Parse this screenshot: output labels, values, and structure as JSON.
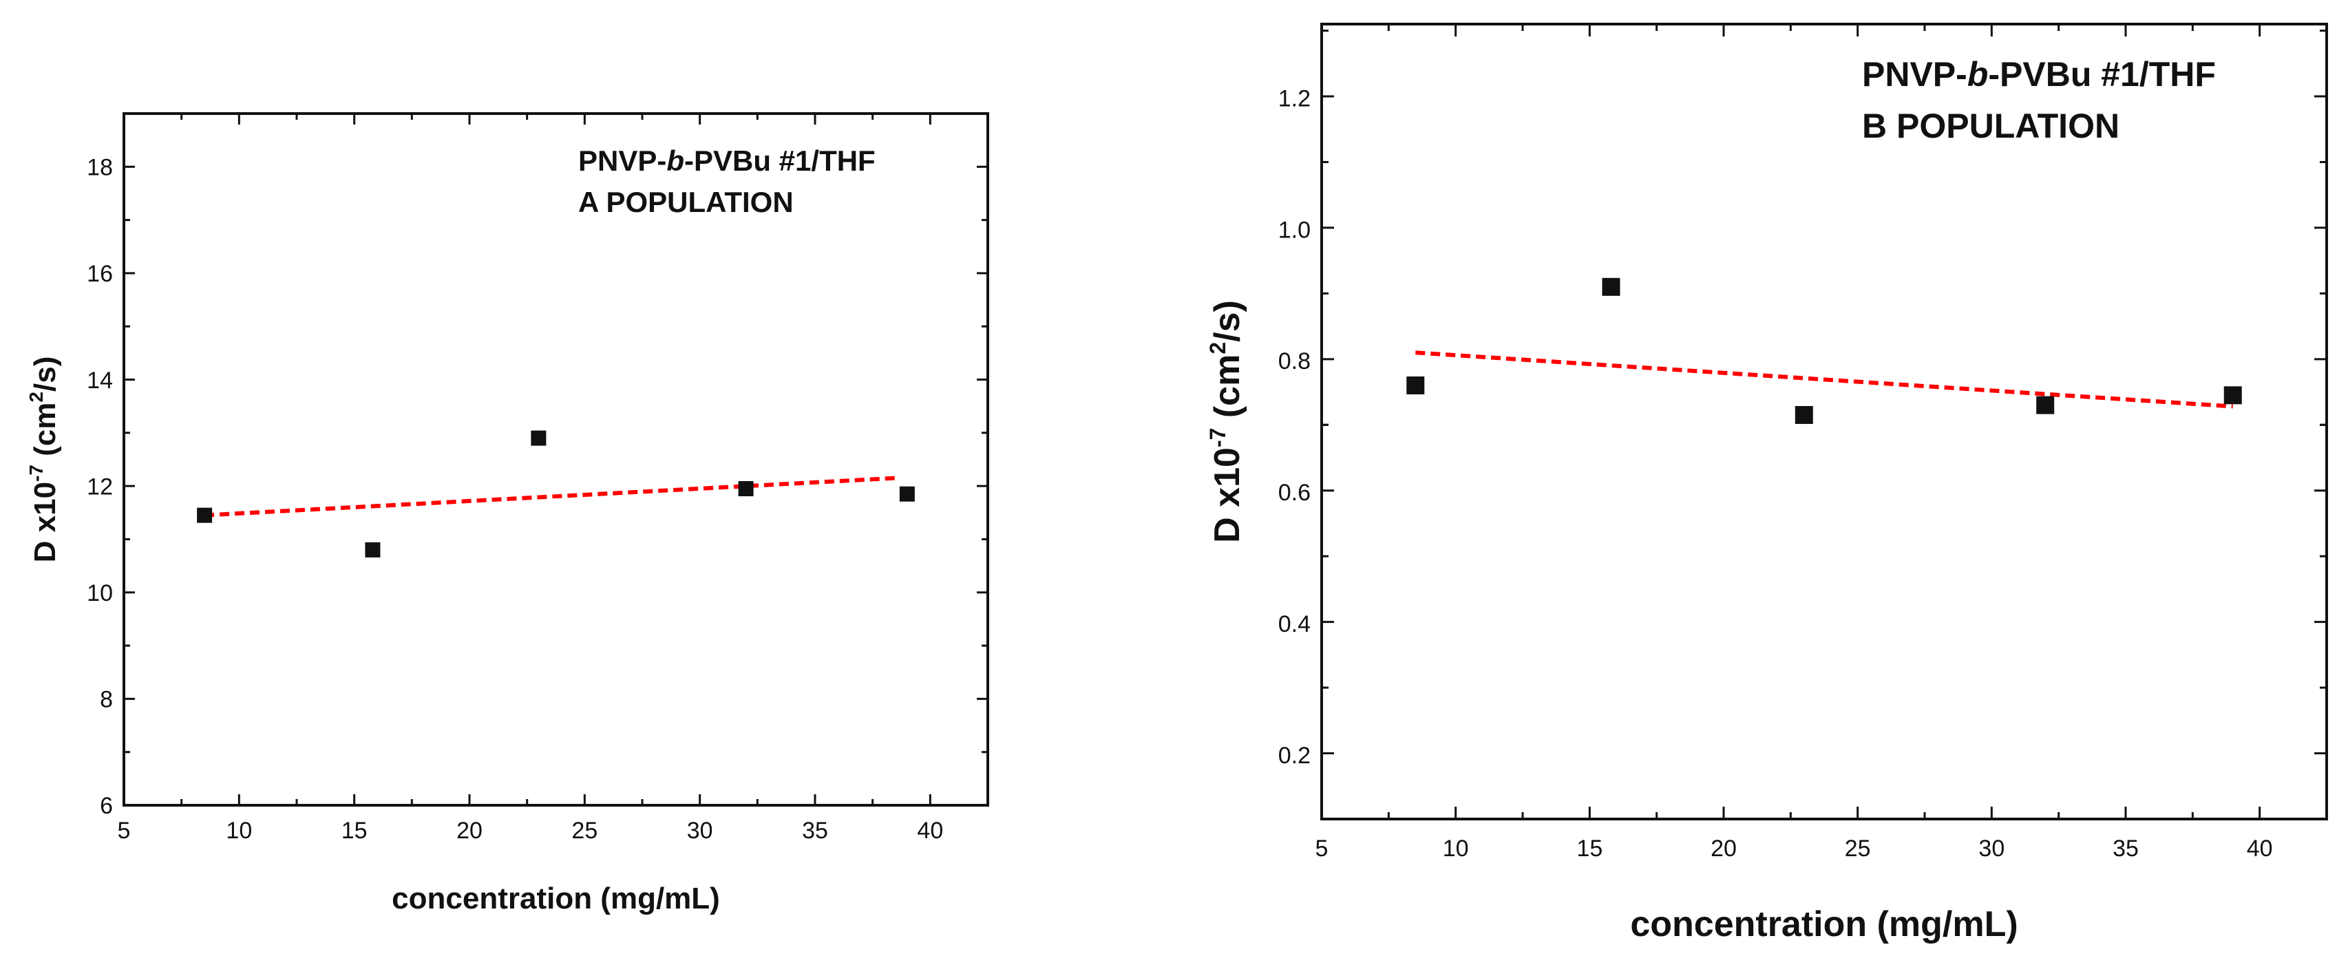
{
  "chart_data": [
    {
      "type": "scatter",
      "title": "",
      "annotation": {
        "line1_prefix": "PNVP-",
        "line1_italic": "b",
        "line1_suffix": "-PVBu #1/THF",
        "line2": "A POPULATION"
      },
      "xlabel": "concentration (mg/mL)",
      "ylabel": {
        "base": "D x10",
        "exp1": "-7",
        "mid": " (cm",
        "exp2": "2",
        "tail": "/s)"
      },
      "xlim": [
        5,
        42.5
      ],
      "ylim": [
        6,
        19
      ],
      "xticks": [
        5,
        10,
        15,
        20,
        25,
        30,
        35,
        40
      ],
      "yticks": [
        6,
        8,
        10,
        12,
        14,
        16,
        18
      ],
      "grid": false,
      "series": [
        {
          "name": "data",
          "x": [
            8.5,
            15.8,
            23,
            32,
            39
          ],
          "y": [
            11.45,
            10.8,
            12.9,
            11.95,
            11.85
          ]
        }
      ],
      "fit": {
        "name": "linear fit",
        "x": [
          8.5,
          38.5
        ],
        "y": [
          11.45,
          12.15
        ],
        "color": "#ff0000"
      }
    },
    {
      "type": "scatter",
      "title": "",
      "annotation": {
        "line1_prefix": "PNVP-",
        "line1_italic": "b",
        "line1_suffix": "-PVBu #1/THF",
        "line2": "B POPULATION"
      },
      "xlabel": "concentration (mg/mL)",
      "ylabel": {
        "base": "D x10",
        "exp1": "-7",
        "mid": " (cm",
        "exp2": "2",
        "tail": "/s)"
      },
      "xlim": [
        5,
        42.5
      ],
      "ylim": [
        0.1,
        1.31
      ],
      "xticks": [
        5,
        10,
        15,
        20,
        25,
        30,
        35,
        40
      ],
      "yticks": [
        0.2,
        0.4,
        0.6,
        0.8,
        1.0,
        1.2
      ],
      "ytick_labels": [
        "0.2",
        "0.4",
        "0.6",
        "0.8",
        "1.0",
        "1.2"
      ],
      "grid": false,
      "series": [
        {
          "name": "data",
          "x": [
            8.5,
            15.8,
            23,
            32,
            39
          ],
          "y": [
            0.76,
            0.91,
            0.715,
            0.73,
            0.745
          ]
        }
      ],
      "fit": {
        "name": "linear fit",
        "x": [
          8.5,
          39
        ],
        "y": [
          0.81,
          0.728
        ],
        "color": "#ff0000"
      }
    }
  ]
}
